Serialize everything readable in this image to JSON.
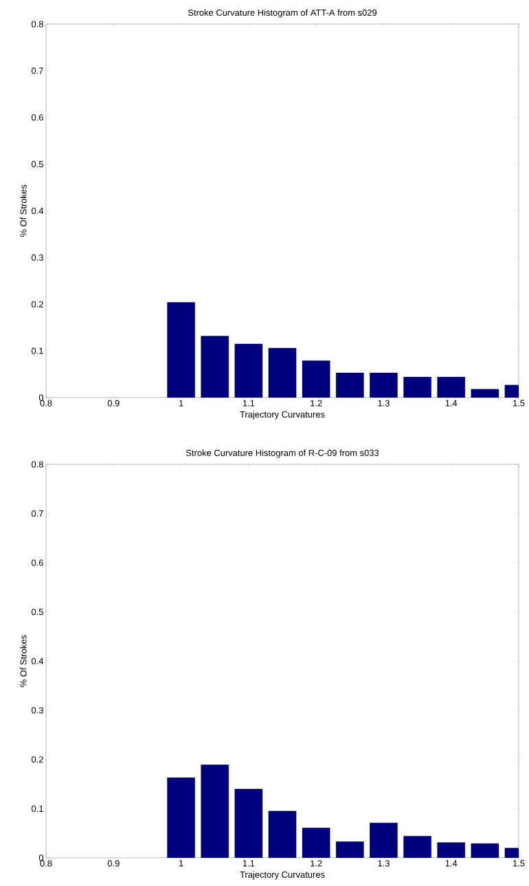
{
  "chart_data": [
    {
      "type": "bar",
      "title": "Stroke Curvature Histogram of ATT-A from s029",
      "xlabel": "Trajectory Curvatures",
      "ylabel": "% Of Strokes",
      "color": "#00007f",
      "x": [
        1.0,
        1.05,
        1.1,
        1.15,
        1.2,
        1.25,
        1.3,
        1.35,
        1.4,
        1.45,
        1.5
      ],
      "values": [
        0.204,
        0.132,
        0.115,
        0.106,
        0.079,
        0.053,
        0.053,
        0.044,
        0.044,
        0.018,
        0.027
      ],
      "xlim": [
        0.8,
        1.5
      ],
      "ylim": [
        0,
        0.8
      ],
      "xticks": [
        0.8,
        0.9,
        1,
        1.1,
        1.2,
        1.3,
        1.4,
        1.5
      ],
      "yticks": [
        0,
        0.1,
        0.2,
        0.3,
        0.4,
        0.5,
        0.6,
        0.7,
        0.8
      ]
    },
    {
      "type": "bar",
      "title": "Stroke Curvature Histogram of R-C-09 from s033",
      "xlabel": "Trajectory Curvatures",
      "ylabel": "% Of Strokes",
      "color": "#00007f",
      "x": [
        1.0,
        1.05,
        1.1,
        1.15,
        1.2,
        1.25,
        1.3,
        1.35,
        1.4,
        1.45,
        1.5
      ],
      "values": [
        0.163,
        0.189,
        0.14,
        0.095,
        0.061,
        0.033,
        0.071,
        0.044,
        0.031,
        0.029,
        0.02
      ],
      "xlim": [
        0.8,
        1.5
      ],
      "ylim": [
        0,
        0.8
      ],
      "xticks": [
        0.8,
        0.9,
        1,
        1.1,
        1.2,
        1.3,
        1.4,
        1.5
      ],
      "yticks": [
        0,
        0.1,
        0.2,
        0.3,
        0.4,
        0.5,
        0.6,
        0.7,
        0.8
      ]
    }
  ]
}
